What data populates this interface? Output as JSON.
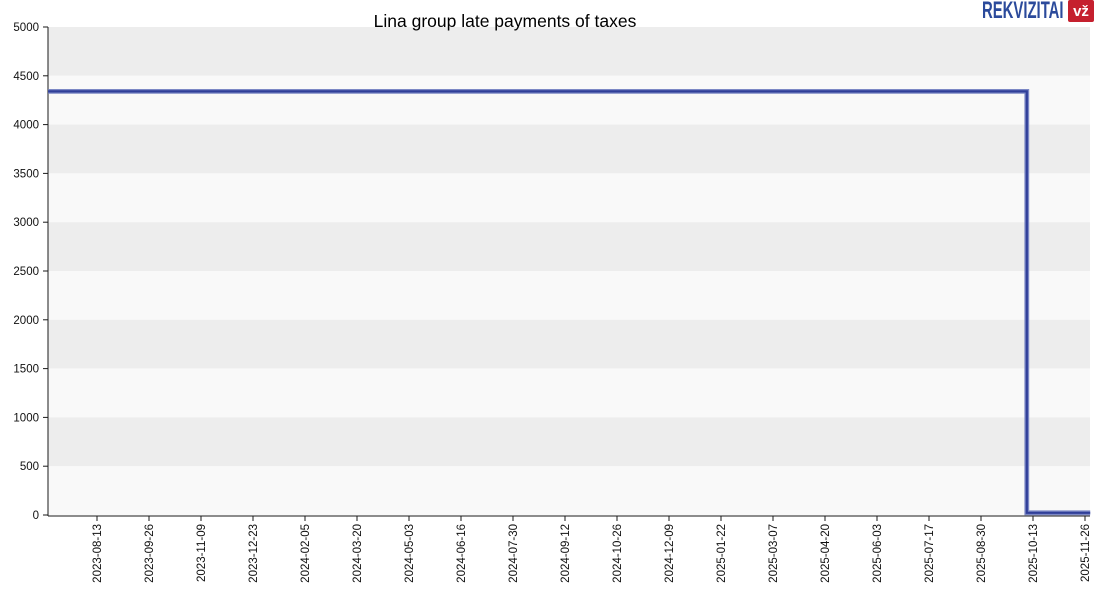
{
  "logo": {
    "text": "REKVIZITAI",
    "badge": "vž",
    "text_color": "#2b4a9b",
    "badge_bg": "#c5202e",
    "badge_text_color": "#ffffff"
  },
  "chart_data": {
    "type": "line",
    "title": "Lina group late payments of taxes",
    "xlabel": "",
    "ylabel": "",
    "ylim": [
      0,
      5000
    ],
    "y_ticks": [
      0,
      500,
      1000,
      1500,
      2000,
      2500,
      3000,
      3500,
      4000,
      4500,
      5000
    ],
    "categories": [
      "2023-08-13",
      "2023-09-26",
      "2023-11-09",
      "2023-12-23",
      "2024-02-05",
      "2024-03-20",
      "2024-05-03",
      "2024-06-16",
      "2024-07-30",
      "2024-09-12",
      "2024-10-26",
      "2024-12-09",
      "2025-01-22",
      "2025-03-07",
      "2025-04-20",
      "2025-06-03",
      "2025-07-17",
      "2025-08-30",
      "2025-10-13",
      "2025-11-26"
    ],
    "grid": "alternating horizontal bands, no vertical gridlines",
    "legend_position": "none",
    "colors": {
      "band_dark": "#ededed",
      "band_light": "#f9f9f9",
      "axis": "#1a1a1a",
      "tick_label": "#111111",
      "line_core": "#303f99",
      "line_edge": "#7c88c5"
    },
    "series": [
      {
        "name": "Late payments of taxes",
        "value_constant": 4340,
        "drops_to_zero_near": "2025-10-08",
        "value_after_drop": 0,
        "points_xi_y": [
          [
            -0.94,
            4340
          ],
          [
            17.88,
            4340
          ],
          [
            17.88,
            0
          ],
          [
            19.1,
            0
          ]
        ]
      }
    ]
  }
}
